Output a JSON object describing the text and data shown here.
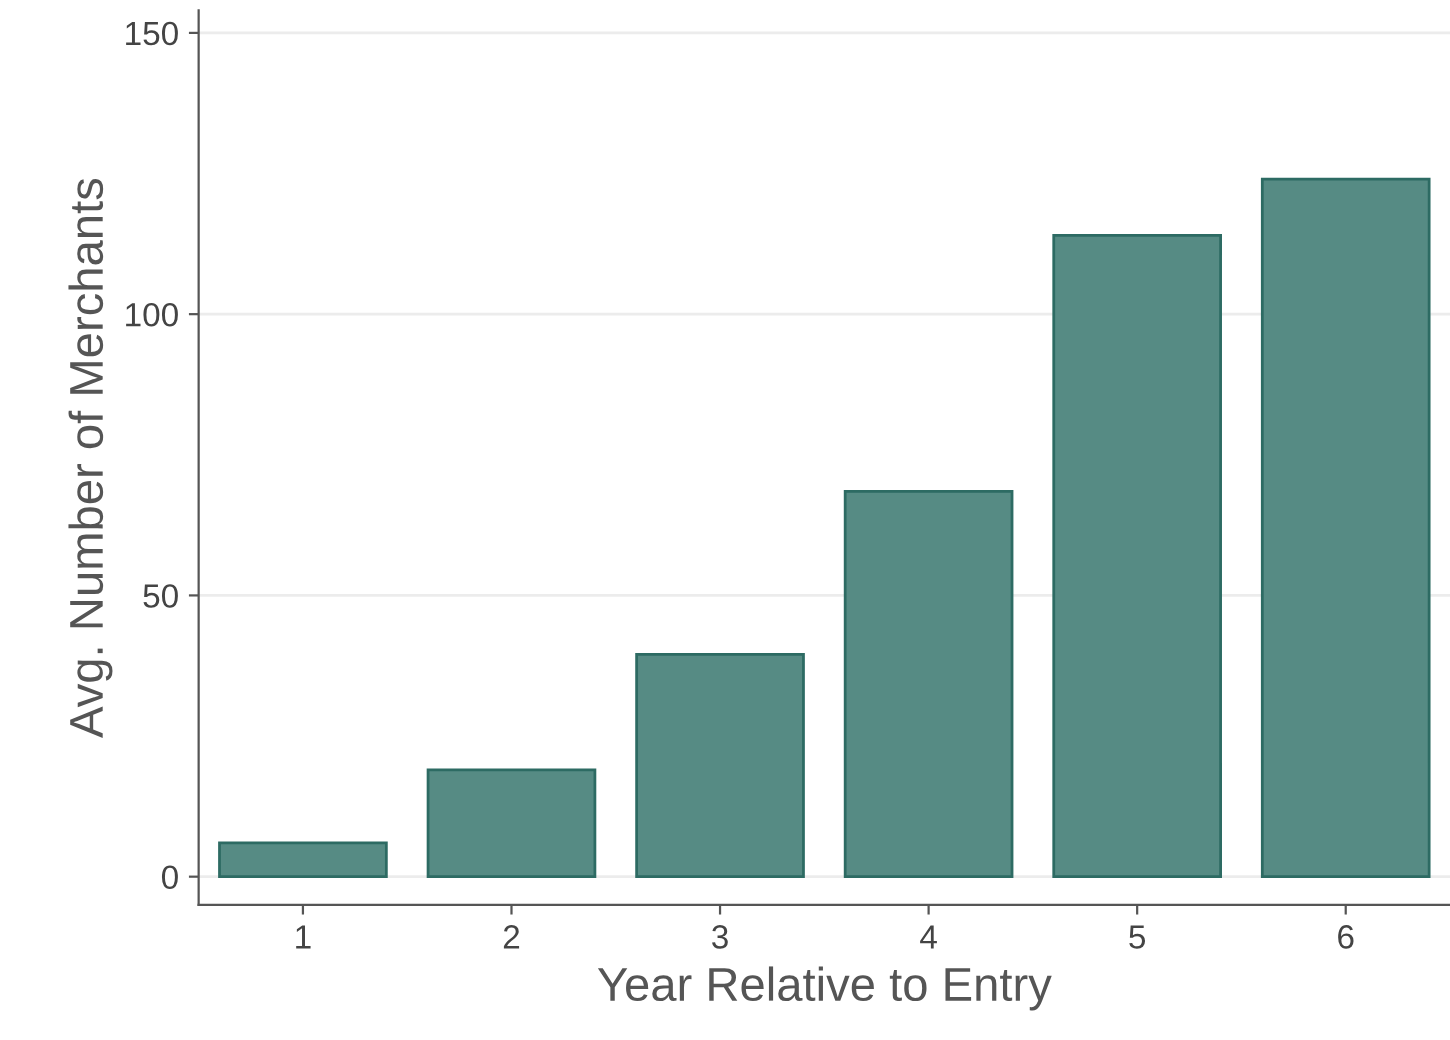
{
  "chart_data": {
    "type": "bar",
    "xlabel": "Year Relative to Entry",
    "ylabel": "Avg. Number of Merchants",
    "categories": [
      "1",
      "2",
      "3",
      "4",
      "5",
      "6"
    ],
    "values": [
      6,
      19,
      39.5,
      68.5,
      114,
      124
    ],
    "color": "#568b84",
    "ylim": [
      -5,
      154
    ],
    "yticks": [
      0,
      50,
      100,
      150
    ],
    "grid": "y"
  }
}
